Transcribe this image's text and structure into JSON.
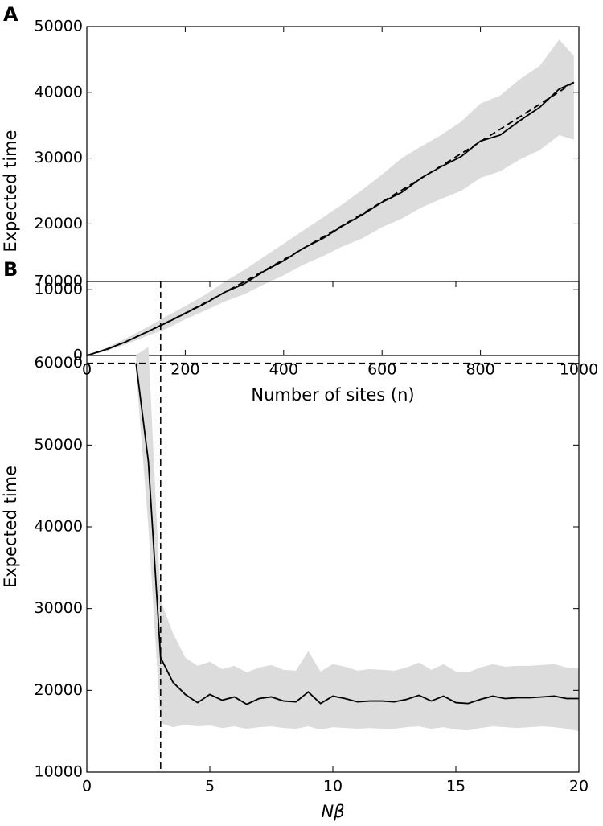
{
  "chart_data": [
    {
      "type": "line",
      "panel": "A",
      "xlabel": "Number of sites (n)",
      "ylabel": "Expected time",
      "xlim": [
        0,
        1000
      ],
      "xticks": [
        0,
        200,
        400,
        600,
        800,
        1000
      ],
      "ylim": [
        0,
        50000
      ],
      "yticks": [
        0,
        10000,
        20000,
        30000,
        40000,
        50000
      ],
      "x": [
        0,
        40,
        80,
        120,
        160,
        200,
        240,
        280,
        320,
        360,
        400,
        440,
        480,
        520,
        560,
        600,
        640,
        680,
        720,
        760,
        800,
        840,
        880,
        920,
        960,
        990
      ],
      "band": {
        "color": "#dcdcdc",
        "lower": [
          0,
          700,
          1700,
          2900,
          4000,
          5500,
          6800,
          8200,
          9300,
          10800,
          12200,
          13800,
          15100,
          16600,
          17800,
          19500,
          20800,
          22500,
          23800,
          25000,
          27000,
          28000,
          29800,
          31200,
          33500,
          32800
        ],
        "upper": [
          0,
          1200,
          2600,
          4200,
          5900,
          7500,
          9200,
          11200,
          13000,
          15000,
          17000,
          19000,
          21000,
          23000,
          25200,
          27500,
          30000,
          31800,
          33500,
          35500,
          38300,
          39500,
          42000,
          44000,
          48000,
          45500
        ]
      },
      "series": [
        {
          "color": "#000000",
          "dashed": false,
          "values": [
            0,
            950,
            2100,
            3500,
            4900,
            6400,
            7900,
            9600,
            10900,
            12800,
            14400,
            16300,
            17800,
            19700,
            21400,
            23300,
            24800,
            27000,
            28700,
            30200,
            32600,
            33500,
            35700,
            37700,
            40500,
            41500
          ]
        },
        {
          "color": "#000000",
          "dashed": true,
          "values": [
            0,
            897,
            2131,
            3493,
            4937,
            6441,
            7998,
            9593,
            11223,
            12883,
            14571,
            16283,
            18018,
            19773,
            21547,
            23348,
            25142,
            26964,
            28800,
            30650,
            32516,
            34388,
            36274,
            38170,
            40080,
            41520
          ]
        }
      ],
      "hlines": [],
      "vlines": []
    },
    {
      "type": "line",
      "panel": "B",
      "xlabel": "Nβ",
      "ylabel": "Expected time",
      "xlim": [
        0,
        20
      ],
      "xticks": [
        0,
        5,
        10,
        15,
        20
      ],
      "ylim": [
        10000,
        70000
      ],
      "yticks": [
        10000,
        20000,
        30000,
        40000,
        50000,
        60000,
        70000
      ],
      "x": [
        2,
        2.5,
        3,
        3.5,
        4,
        4.5,
        5,
        5.5,
        6,
        6.5,
        7,
        7.5,
        8,
        8.5,
        9,
        9.5,
        10,
        10.5,
        11,
        11.5,
        12,
        12.5,
        13,
        13.5,
        14,
        14.5,
        15,
        15.5,
        16,
        16.5,
        17,
        17.5,
        18,
        18.5,
        19,
        19.5,
        20
      ],
      "band": {
        "color": "#dcdcdc",
        "lower": [
          59000,
          40000,
          16000,
          15500,
          15800,
          15600,
          15700,
          15400,
          15600,
          15300,
          15500,
          15600,
          15400,
          15300,
          15600,
          15200,
          15500,
          15400,
          15300,
          15400,
          15300,
          15300,
          15500,
          15600,
          15300,
          15500,
          15200,
          15100,
          15400,
          15600,
          15500,
          15400,
          15500,
          15600,
          15500,
          15300,
          15000
        ],
        "upper": [
          61000,
          62000,
          31000,
          27000,
          24000,
          23000,
          23500,
          22600,
          23000,
          22200,
          22800,
          23100,
          22500,
          22400,
          24800,
          22300,
          23200,
          22900,
          22400,
          22600,
          22500,
          22400,
          22800,
          23400,
          22500,
          23200,
          22300,
          22200,
          22800,
          23200,
          22900,
          23000,
          23000,
          23100,
          23200,
          22800,
          22700
        ]
      },
      "series": [
        {
          "color": "#000000",
          "dashed": false,
          "values": [
            60000,
            48000,
            24000,
            21000,
            19500,
            18500,
            19500,
            18800,
            19200,
            18300,
            19000,
            19200,
            18700,
            18600,
            19800,
            18400,
            19300,
            19000,
            18600,
            18700,
            18700,
            18600,
            18900,
            19400,
            18700,
            19300,
            18500,
            18400,
            18900,
            19300,
            19000,
            19100,
            19100,
            19200,
            19300,
            19000,
            19000
          ]
        }
      ],
      "hlines": [
        60000
      ],
      "vlines": [
        3
      ]
    }
  ]
}
